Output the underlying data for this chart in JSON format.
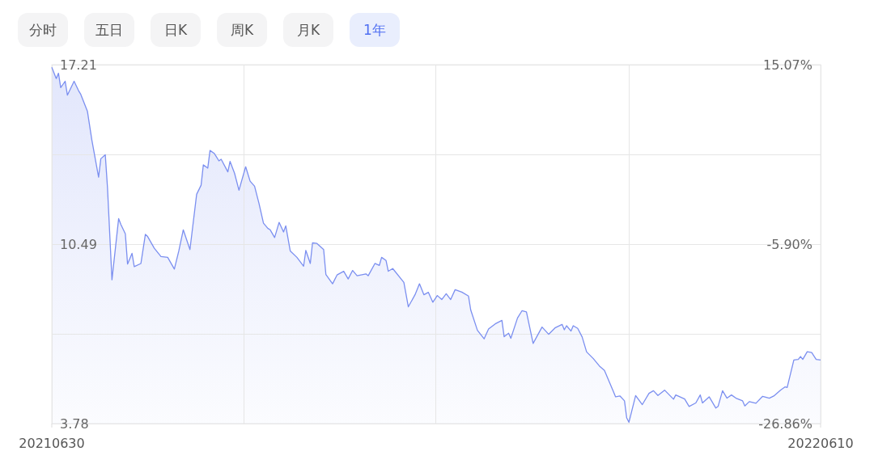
{
  "chart_data": {
    "type": "area",
    "annotations": [
      "分时",
      "五日",
      "日K",
      "周K",
      "月K",
      "1年"
    ],
    "x": [
      "2021-06-30",
      "2021-07-02",
      "2021-07-03",
      "2021-07-04",
      "2021-07-06",
      "2021-07-07",
      "2021-07-10",
      "2021-07-12",
      "2021-07-13",
      "2021-07-16",
      "2021-07-18",
      "2021-07-21",
      "2021-07-22",
      "2021-07-24",
      "2021-07-25",
      "2021-07-27",
      "2021-07-30",
      "2021-07-31",
      "2021-08-02",
      "2021-08-03",
      "2021-08-05",
      "2021-08-06",
      "2021-08-09",
      "2021-08-11",
      "2021-08-12",
      "2021-08-15",
      "2021-08-18",
      "2021-08-21",
      "2021-08-24",
      "2021-08-26",
      "2021-08-28",
      "2021-08-31",
      "2021-09-03",
      "2021-09-05",
      "2021-09-06",
      "2021-09-08",
      "2021-09-09",
      "2021-09-11",
      "2021-09-13",
      "2021-09-14",
      "2021-09-17",
      "2021-09-18",
      "2021-09-20",
      "2021-09-22",
      "2021-09-25",
      "2021-09-27",
      "2021-09-29",
      "2021-10-01",
      "2021-10-03",
      "2021-10-05",
      "2021-10-06",
      "2021-10-08",
      "2021-10-10",
      "2021-10-12",
      "2021-10-13",
      "2021-10-15",
      "2021-10-18",
      "2021-10-21",
      "2021-10-22",
      "2021-10-24",
      "2021-10-25",
      "2021-10-27",
      "2021-10-30",
      "2021-10-31",
      "2021-11-03",
      "2021-11-05",
      "2021-11-08",
      "2021-11-10",
      "2021-11-12",
      "2021-11-14",
      "2021-11-18",
      "2021-11-19",
      "2021-11-22",
      "2021-11-24",
      "2021-11-25",
      "2021-11-27",
      "2021-11-28",
      "2021-11-30",
      "2021-12-05",
      "2021-12-07",
      "2021-12-10",
      "2021-12-12",
      "2021-12-14",
      "2021-12-16",
      "2021-12-18",
      "2021-12-20",
      "2021-12-22",
      "2021-12-24",
      "2021-12-26",
      "2021-12-28",
      "2021-12-31",
      "2022-01-03",
      "2022-01-04",
      "2022-01-07",
      "2022-01-10",
      "2022-01-12",
      "2022-01-15",
      "2022-01-18",
      "2022-01-19",
      "2022-01-21",
      "2022-01-22",
      "2022-01-25",
      "2022-01-27",
      "2022-01-29",
      "2022-02-01",
      "2022-02-05",
      "2022-02-08",
      "2022-02-11",
      "2022-02-14",
      "2022-02-15",
      "2022-02-16",
      "2022-02-18",
      "2022-02-19",
      "2022-02-21",
      "2022-02-23",
      "2022-02-25",
      "2022-02-28",
      "2022-03-03",
      "2022-03-05",
      "2022-03-09",
      "2022-03-10",
      "2022-03-12",
      "2022-03-14",
      "2022-03-15",
      "2022-03-16",
      "2022-03-19",
      "2022-03-22",
      "2022-03-25",
      "2022-03-27",
      "2022-03-29",
      "2022-04-01",
      "2022-04-05",
      "2022-04-06",
      "2022-04-10",
      "2022-04-12",
      "2022-04-15",
      "2022-04-17",
      "2022-04-18",
      "2022-04-21",
      "2022-04-24",
      "2022-04-25",
      "2022-04-27",
      "2022-04-29",
      "2022-05-01",
      "2022-05-03",
      "2022-05-06",
      "2022-05-07",
      "2022-05-09",
      "2022-05-12",
      "2022-05-15",
      "2022-05-18",
      "2022-05-20",
      "2022-05-23",
      "2022-05-25",
      "2022-05-26",
      "2022-05-29",
      "2022-05-31",
      "2022-06-01",
      "2022-06-02",
      "2022-06-04",
      "2022-06-06",
      "2022-06-08",
      "2022-06-10"
    ],
    "values": [
      17.11,
      16.69,
      16.89,
      16.35,
      16.59,
      16.07,
      16.59,
      16.24,
      16.1,
      15.46,
      14.38,
      13.0,
      13.69,
      13.84,
      12.6,
      9.16,
      11.45,
      11.23,
      10.88,
      9.75,
      10.15,
      9.65,
      9.77,
      10.86,
      10.78,
      10.34,
      10.03,
      10.0,
      9.56,
      10.24,
      11.03,
      10.29,
      12.36,
      12.7,
      13.46,
      13.34,
      14.0,
      13.88,
      13.61,
      13.67,
      13.2,
      13.59,
      13.15,
      12.51,
      13.39,
      12.85,
      12.66,
      12.01,
      11.28,
      11.08,
      11.03,
      10.74,
      11.31,
      10.95,
      11.18,
      10.24,
      10.0,
      9.67,
      10.26,
      9.77,
      10.54,
      10.52,
      10.29,
      9.36,
      9.01,
      9.34,
      9.48,
      9.19,
      9.51,
      9.31,
      9.38,
      9.31,
      9.77,
      9.7,
      10.0,
      9.88,
      9.48,
      9.58,
      9.06,
      8.15,
      8.6,
      9.01,
      8.6,
      8.69,
      8.32,
      8.57,
      8.42,
      8.64,
      8.42,
      8.79,
      8.7,
      8.55,
      8.03,
      7.27,
      6.95,
      7.32,
      7.51,
      7.64,
      7.03,
      7.16,
      6.97,
      7.73,
      8.0,
      7.96,
      6.78,
      7.39,
      7.12,
      7.37,
      7.49,
      7.29,
      7.44,
      7.24,
      7.44,
      7.34,
      7.02,
      6.46,
      6.21,
      5.91,
      5.77,
      4.98,
      4.78,
      4.81,
      4.63,
      3.99,
      3.83,
      4.83,
      4.49,
      4.91,
      5.01,
      4.83,
      5.03,
      4.69,
      4.85,
      4.7,
      4.42,
      4.55,
      4.85,
      4.55,
      4.78,
      4.36,
      4.42,
      5.01,
      4.73,
      4.85,
      4.73,
      4.63,
      4.44,
      4.6,
      4.54,
      4.8,
      4.73,
      4.81,
      5.03,
      5.15,
      5.13,
      6.16,
      6.18,
      6.29,
      6.18,
      6.47,
      6.44,
      6.18,
      6.16
    ],
    "color": "#7b8ff0",
    "xlim": [
      "2021-06-30",
      "2022-06-10"
    ],
    "xticks": [
      {
        "value": "2021-06-30",
        "label": "20210630"
      },
      {
        "value": "2021-09-24",
        "label": null
      },
      {
        "value": "2021-12-19",
        "label": null
      },
      {
        "value": "2022-03-16",
        "label": null
      },
      {
        "value": "2022-06-10",
        "label": "20220610"
      }
    ],
    "ylim": [
      3.78,
      17.21
    ],
    "yticks": [
      3.78,
      {
        "value": 7.14,
        "label": null
      },
      10.49,
      {
        "value": 13.85,
        "label": null
      },
      17.21
    ],
    "y2lim": [
      -26.86,
      15.07
    ],
    "y2ticks": [
      {
        "value": -26.86,
        "label": "-26.86%"
      },
      {
        "value": -5.9,
        "label": "-5.90%"
      },
      {
        "value": 15.07,
        "label": "15.07%"
      }
    ],
    "grid": true
  }
}
